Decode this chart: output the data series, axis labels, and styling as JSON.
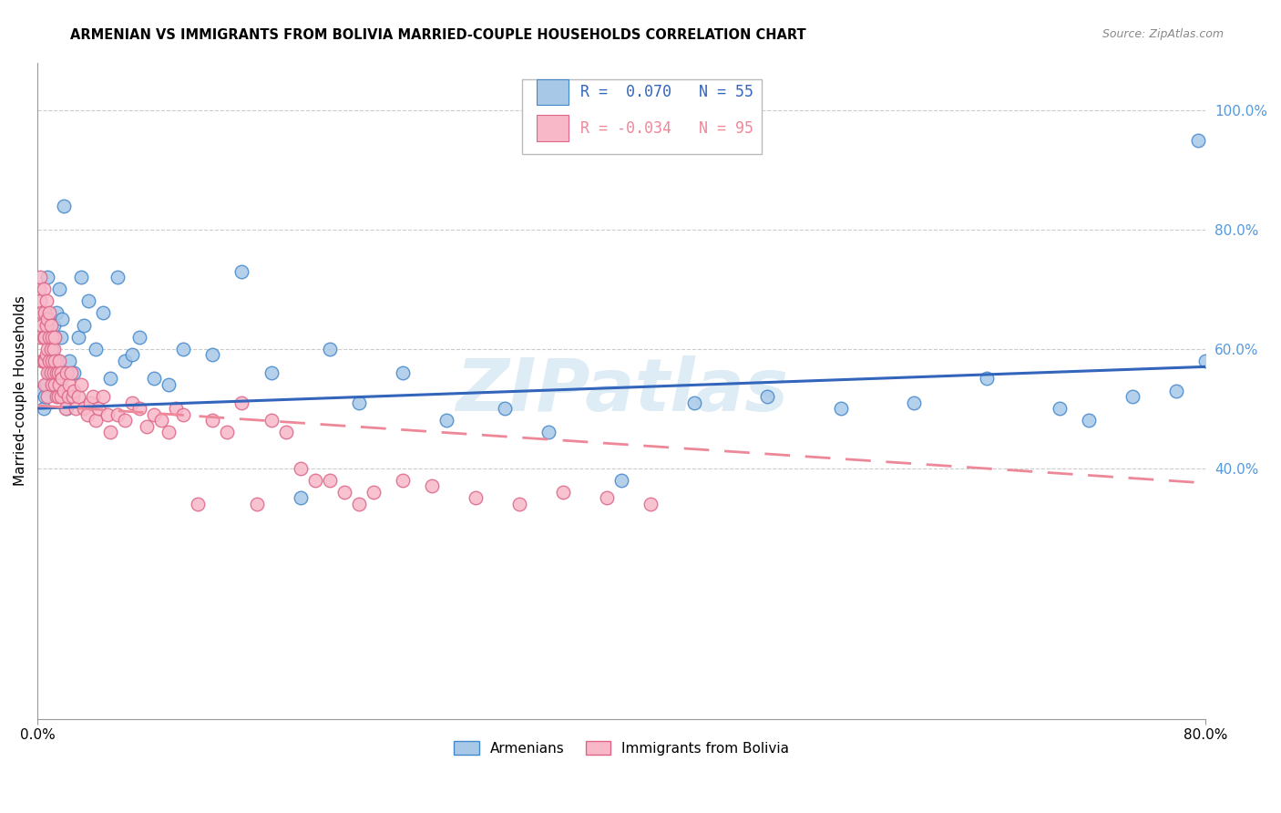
{
  "title": "ARMENIAN VS IMMIGRANTS FROM BOLIVIA MARRIED-COUPLE HOUSEHOLDS CORRELATION CHART",
  "source": "Source: ZipAtlas.com",
  "ylabel": "Married-couple Households",
  "xlim": [
    0.0,
    0.8
  ],
  "ylim": [
    -0.02,
    1.08
  ],
  "ytick_values": [
    0.4,
    0.6,
    0.8,
    1.0
  ],
  "ytick_labels": [
    "40.0%",
    "60.0%",
    "80.0%",
    "100.0%"
  ],
  "xtick_values": [
    0.0,
    0.8
  ],
  "xtick_labels": [
    "0.0%",
    "80.0%"
  ],
  "legend_armenian_R": " 0.070",
  "legend_armenian_N": "55",
  "legend_bolivia_R": "-0.034",
  "legend_bolivia_N": "95",
  "color_armenian_face": "#A8C8E8",
  "color_armenian_edge": "#4488CC",
  "color_bolivia_face": "#F8B8C8",
  "color_bolivia_edge": "#DD6688",
  "color_line_armenian": "#3366BB",
  "color_line_bolivia": "#EE8899",
  "color_grid": "#CCCCCC",
  "color_ytick": "#5599DD",
  "watermark_text": "ZIPatlas",
  "armenian_x": [
    0.003,
    0.004,
    0.005,
    0.006,
    0.007,
    0.008,
    0.009,
    0.01,
    0.011,
    0.012,
    0.013,
    0.014,
    0.015,
    0.016,
    0.017,
    0.018,
    0.02,
    0.022,
    0.025,
    0.028,
    0.03,
    0.032,
    0.035,
    0.04,
    0.045,
    0.05,
    0.055,
    0.06,
    0.065,
    0.07,
    0.08,
    0.09,
    0.1,
    0.12,
    0.14,
    0.16,
    0.18,
    0.2,
    0.22,
    0.25,
    0.28,
    0.32,
    0.35,
    0.4,
    0.45,
    0.5,
    0.55,
    0.6,
    0.65,
    0.7,
    0.72,
    0.75,
    0.78,
    0.795,
    0.8
  ],
  "armenian_y": [
    0.53,
    0.5,
    0.52,
    0.54,
    0.72,
    0.56,
    0.58,
    0.6,
    0.64,
    0.62,
    0.66,
    0.58,
    0.7,
    0.62,
    0.65,
    0.84,
    0.5,
    0.58,
    0.56,
    0.62,
    0.72,
    0.64,
    0.68,
    0.6,
    0.66,
    0.55,
    0.72,
    0.58,
    0.59,
    0.62,
    0.55,
    0.54,
    0.6,
    0.59,
    0.73,
    0.56,
    0.35,
    0.6,
    0.51,
    0.56,
    0.48,
    0.5,
    0.46,
    0.38,
    0.51,
    0.52,
    0.5,
    0.51,
    0.55,
    0.5,
    0.48,
    0.52,
    0.53,
    0.95,
    0.58
  ],
  "bolivia_x": [
    0.001,
    0.001,
    0.002,
    0.002,
    0.002,
    0.003,
    0.003,
    0.003,
    0.004,
    0.004,
    0.004,
    0.005,
    0.005,
    0.005,
    0.005,
    0.006,
    0.006,
    0.006,
    0.007,
    0.007,
    0.007,
    0.007,
    0.008,
    0.008,
    0.008,
    0.009,
    0.009,
    0.009,
    0.01,
    0.01,
    0.01,
    0.011,
    0.011,
    0.012,
    0.012,
    0.012,
    0.013,
    0.013,
    0.014,
    0.014,
    0.015,
    0.015,
    0.016,
    0.016,
    0.017,
    0.018,
    0.019,
    0.02,
    0.021,
    0.022,
    0.023,
    0.024,
    0.025,
    0.026,
    0.028,
    0.03,
    0.032,
    0.034,
    0.036,
    0.038,
    0.04,
    0.042,
    0.045,
    0.048,
    0.05,
    0.055,
    0.06,
    0.065,
    0.07,
    0.075,
    0.08,
    0.085,
    0.09,
    0.095,
    0.1,
    0.11,
    0.12,
    0.13,
    0.14,
    0.15,
    0.16,
    0.17,
    0.18,
    0.19,
    0.2,
    0.21,
    0.22,
    0.23,
    0.25,
    0.27,
    0.3,
    0.33,
    0.36,
    0.39,
    0.42
  ],
  "bolivia_y": [
    0.7,
    0.65,
    0.68,
    0.72,
    0.62,
    0.66,
    0.58,
    0.64,
    0.7,
    0.62,
    0.58,
    0.66,
    0.62,
    0.58,
    0.54,
    0.68,
    0.64,
    0.59,
    0.65,
    0.6,
    0.56,
    0.52,
    0.62,
    0.66,
    0.58,
    0.64,
    0.6,
    0.56,
    0.62,
    0.58,
    0.54,
    0.6,
    0.56,
    0.62,
    0.58,
    0.54,
    0.56,
    0.52,
    0.56,
    0.52,
    0.58,
    0.54,
    0.56,
    0.52,
    0.55,
    0.53,
    0.5,
    0.56,
    0.52,
    0.54,
    0.56,
    0.52,
    0.53,
    0.5,
    0.52,
    0.54,
    0.5,
    0.49,
    0.51,
    0.52,
    0.48,
    0.5,
    0.52,
    0.49,
    0.46,
    0.49,
    0.48,
    0.51,
    0.5,
    0.47,
    0.49,
    0.48,
    0.46,
    0.5,
    0.49,
    0.34,
    0.48,
    0.46,
    0.51,
    0.34,
    0.48,
    0.46,
    0.4,
    0.38,
    0.38,
    0.36,
    0.34,
    0.36,
    0.38,
    0.37,
    0.35,
    0.34,
    0.36,
    0.35,
    0.34
  ]
}
